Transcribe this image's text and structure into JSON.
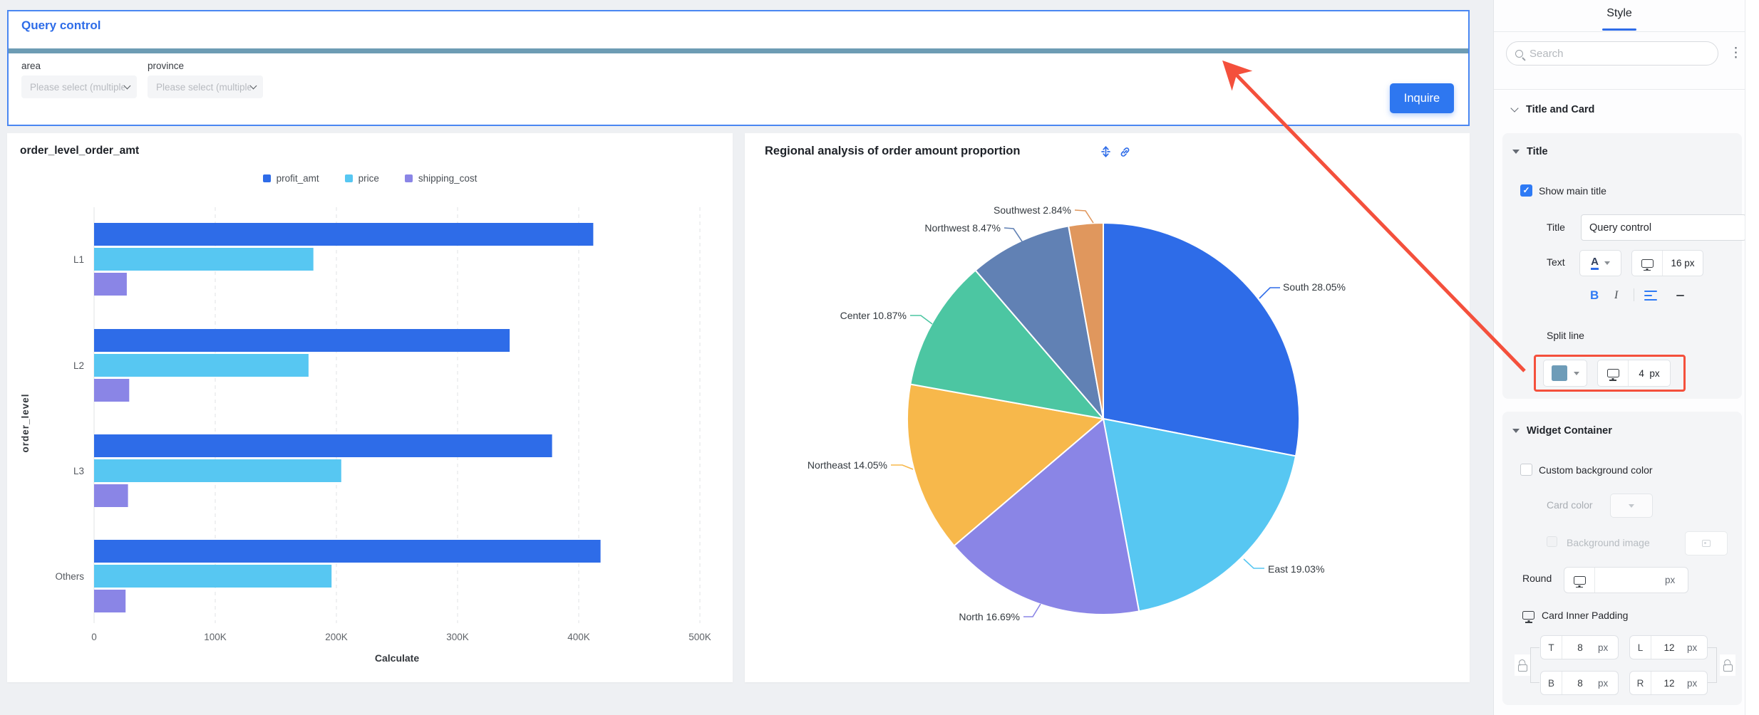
{
  "query_panel": {
    "title": "Query control",
    "filters": [
      {
        "label": "area",
        "placeholder": "Please select (multiple ..."
      },
      {
        "label": "province",
        "placeholder": "Please select (multiple ..."
      }
    ],
    "inquire_label": "Inquire"
  },
  "chart_data": [
    {
      "type": "bar",
      "orientation": "horizontal",
      "title": "order_level_order_amt",
      "categories": [
        "L1",
        "L2",
        "L3",
        "Others"
      ],
      "series": [
        {
          "name": "profit_amt",
          "color": "#2e6ce8",
          "values": [
            412000,
            343000,
            378000,
            418000
          ]
        },
        {
          "name": "price",
          "color": "#57c7f2",
          "values": [
            181000,
            177000,
            204000,
            196000
          ]
        },
        {
          "name": "shipping_cost",
          "color": "#8a85e6",
          "values": [
            27000,
            29000,
            28000,
            26000
          ]
        }
      ],
      "xlabel": "Calculate",
      "ylabel": "order_level",
      "xlim": [
        0,
        500000
      ],
      "xticks": [
        {
          "v": 0,
          "label": "0"
        },
        {
          "v": 100000,
          "label": "100K"
        },
        {
          "v": 200000,
          "label": "200K"
        },
        {
          "v": 300000,
          "label": "300K"
        },
        {
          "v": 400000,
          "label": "400K"
        },
        {
          "v": 500000,
          "label": "500K"
        }
      ],
      "grid": "dashed-vertical",
      "legend_position": "top"
    },
    {
      "type": "pie",
      "title": "Regional analysis of order amount proportion",
      "start_angle_deg": 0,
      "direction": "clockwise",
      "label_format": "{name} {pct}%",
      "slices": [
        {
          "name": "South",
          "pct": 28.05,
          "color": "#2e6ce8"
        },
        {
          "name": "East",
          "pct": 19.03,
          "color": "#57c7f2"
        },
        {
          "name": "North",
          "pct": 16.69,
          "color": "#8a85e6"
        },
        {
          "name": "Northeast",
          "pct": 14.05,
          "color": "#f7b84b"
        },
        {
          "name": "Center",
          "pct": 10.87,
          "color": "#4cc6a2"
        },
        {
          "name": "Northwest",
          "pct": 8.47,
          "color": "#6181b4"
        },
        {
          "name": "Southwest",
          "pct": 2.84,
          "color": "#e0975d"
        }
      ]
    }
  ],
  "style_panel": {
    "tab": "Style",
    "search_placeholder": "Search",
    "kebab": "⋮",
    "section_title_and_card": "Title and Card",
    "title_section": {
      "header": "Title",
      "show_main_title": "Show main title",
      "check_glyph": "✓",
      "title_label": "Title",
      "title_value": "Query control",
      "text_label": "Text",
      "font_color_glyph": "A",
      "font_size": "16",
      "px": "px",
      "bold_glyph": "B",
      "italic_glyph": "I",
      "split_line_label": "Split line",
      "split_line_color": "#6e9cb8",
      "split_line_size": "4"
    },
    "widget_container": {
      "header": "Widget Container",
      "custom_bg": "Custom background color",
      "card_color": "Card color",
      "background_image": "Background image",
      "round_label": "Round",
      "round_px": "px",
      "card_inner_padding": "Card Inner Padding",
      "padding": {
        "t_label": "T",
        "t": "8",
        "l_label": "L",
        "l": "12",
        "b_label": "B",
        "b": "8",
        "r_label": "R",
        "r": "12",
        "px": "px"
      }
    }
  },
  "colors": {
    "accent_blue": "#2e6ce8",
    "annotation_red": "#f4503c",
    "split_line_teal": "#6d9cb4",
    "canvas_bg": "#eef0f3"
  }
}
